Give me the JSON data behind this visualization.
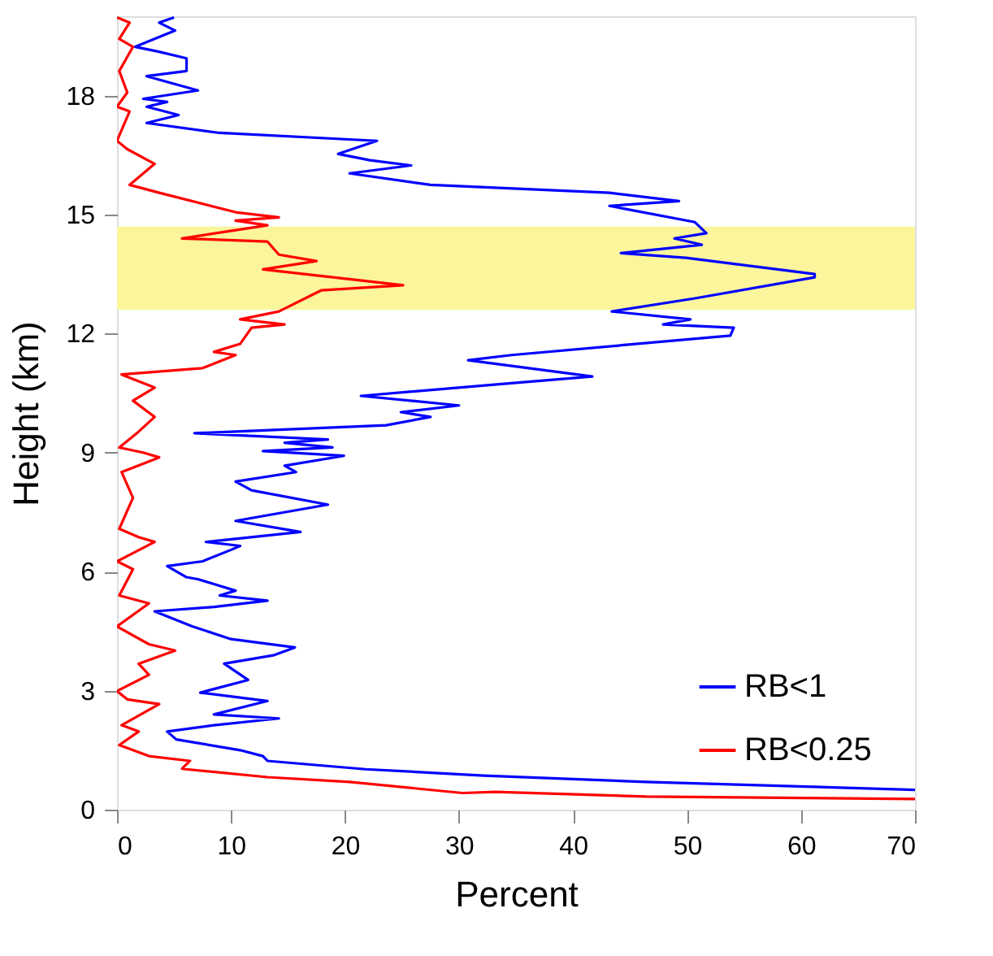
{
  "chart_data": {
    "type": "line",
    "xlabel": "Percent",
    "ylabel": "Height (km)",
    "xlim": [
      0,
      70
    ],
    "xticks": [
      0,
      10,
      20,
      30,
      40,
      50,
      60,
      70
    ],
    "ylim": [
      0,
      20
    ],
    "yticks": [
      0,
      3,
      6,
      9,
      12,
      15,
      18
    ],
    "grid": false,
    "legend": "bottom right",
    "marker": "none",
    "line_style": "solid",
    "bands": [
      {
        "axis": "y",
        "from": 12.6,
        "to": 14.7,
        "label": null,
        "color": "#fbf59c"
      }
    ],
    "series": [
      {
        "name": "RB<1",
        "color": "#0000ff",
        "x": [
          70,
          46.4,
          32.2,
          21.8,
          13.2,
          12.8,
          10.8,
          5.2,
          4.4,
          8.5,
          14.2,
          8.5,
          13.2,
          7.3,
          11.5,
          9.4,
          13.7,
          15.6,
          10.0,
          6.6,
          3.3,
          8.5,
          13.2,
          9.0,
          10.4,
          7.1,
          6.1,
          4.4,
          7.5,
          10.0,
          10.8,
          7.8,
          16.1,
          10.4,
          18.5,
          11.8,
          10.4,
          15.7,
          14.7,
          19.9,
          12.8,
          18.9,
          14.7,
          18.5,
          6.8,
          23.6,
          27.5,
          24.9,
          30.0,
          21.4,
          35.0,
          41.7,
          30.8,
          34.6,
          53.8,
          54.1,
          47.9,
          50.3,
          43.4,
          50.7,
          61.2,
          61.2,
          49.9,
          44.2,
          51.3,
          48.9,
          51.7,
          50.7,
          43.2,
          49.3,
          43.2,
          27.5,
          20.4,
          25.8,
          22.2,
          19.4,
          22.8,
          9.0,
          2.6,
          5.4,
          2.6,
          4.4,
          2.3,
          7.1,
          2.6,
          6.1,
          6.1,
          3.6,
          1.6,
          5.1,
          3.7,
          5.0
        ],
        "values": [
          0.5,
          0.7,
          0.86,
          1.02,
          1.23,
          1.35,
          1.5,
          1.77,
          1.97,
          2.13,
          2.3,
          2.4,
          2.74,
          2.95,
          3.27,
          3.68,
          3.89,
          4.09,
          4.3,
          4.62,
          5.0,
          5.11,
          5.27,
          5.4,
          5.52,
          5.81,
          5.86,
          6.14,
          6.26,
          6.55,
          6.65,
          6.75,
          7.0,
          7.28,
          7.69,
          8.05,
          8.27,
          8.51,
          8.67,
          8.92,
          9.04,
          9.13,
          9.25,
          9.33,
          9.49,
          9.69,
          9.9,
          10.02,
          10.19,
          10.43,
          10.76,
          10.92,
          11.33,
          11.46,
          11.95,
          12.15,
          12.23,
          12.36,
          12.56,
          12.89,
          13.42,
          13.5,
          13.91,
          14.03,
          14.24,
          14.4,
          14.53,
          14.81,
          15.22,
          15.34,
          15.55,
          15.75,
          16.04,
          16.24,
          16.37,
          16.53,
          16.86,
          17.06,
          17.31,
          17.51,
          17.72,
          17.84,
          17.92,
          18.13,
          18.49,
          18.62,
          18.94,
          19.11,
          19.23,
          19.64,
          19.84,
          19.97
        ]
      },
      {
        "name": "RB<0.25",
        "color": "#ff0000",
        "x": [
          70,
          46.4,
          33.2,
          30.3,
          20.4,
          13.2,
          5.7,
          6.4,
          2.8,
          0.2,
          1.9,
          0.4,
          3.7,
          0.9,
          0,
          2.8,
          1.9,
          5.1,
          2.8,
          0,
          2.8,
          0.2,
          1.4,
          0,
          3.3,
          1.9,
          0.2,
          1.4,
          0.4,
          3.7,
          2.3,
          0.2,
          1.9,
          3.3,
          1.4,
          3.3,
          0.4,
          7.5,
          10.4,
          8.5,
          10.8,
          11.8,
          14.7,
          10.8,
          14.2,
          17.9,
          25.1,
          12.8,
          17.5,
          14.2,
          13.2,
          5.7,
          13.2,
          10.4,
          14.2,
          10.4,
          3.7,
          1.1,
          3.3,
          0.9,
          0,
          1.1,
          0,
          0.9,
          0.2,
          1.4,
          0.2,
          1.1,
          0
        ],
        "values": [
          0.27,
          0.33,
          0.45,
          0.42,
          0.7,
          0.82,
          1.03,
          1.23,
          1.35,
          1.63,
          1.97,
          2.13,
          2.66,
          2.78,
          2.99,
          3.4,
          3.68,
          4.01,
          4.17,
          4.62,
          5.2,
          5.4,
          6.06,
          6.26,
          6.75,
          6.87,
          7.08,
          7.86,
          8.51,
          8.88,
          9.0,
          9.13,
          9.53,
          9.9,
          10.31,
          10.64,
          10.97,
          11.13,
          11.46,
          11.54,
          11.74,
          12.15,
          12.23,
          12.36,
          12.56,
          13.09,
          13.22,
          13.62,
          13.83,
          13.99,
          14.32,
          14.4,
          14.73,
          14.85,
          14.93,
          15.06,
          15.55,
          15.75,
          16.28,
          16.65,
          16.86,
          17.6,
          17.72,
          18.08,
          18.62,
          19.23,
          19.43,
          19.84,
          19.97
        ]
      }
    ]
  }
}
